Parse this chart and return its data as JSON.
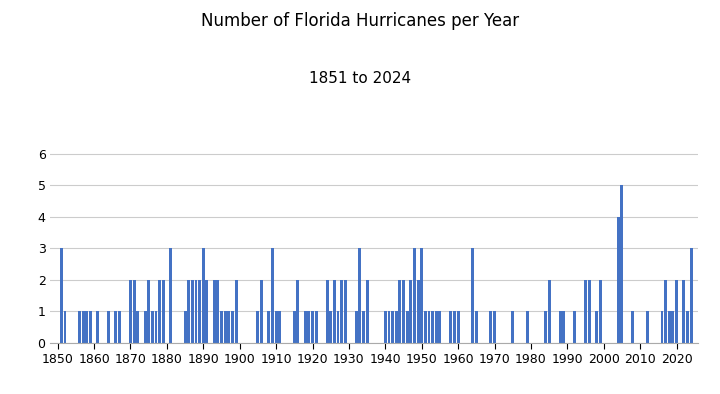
{
  "title": "Number of Florida Hurricanes per Year",
  "subtitle": "1851 to 2024",
  "bar_color": "#4472C4",
  "xlim": [
    1848,
    2026
  ],
  "ylim": [
    0,
    6.5
  ],
  "yticks": [
    0,
    1,
    2,
    3,
    4,
    5,
    6
  ],
  "xticks": [
    1850,
    1860,
    1870,
    1880,
    1890,
    1900,
    1910,
    1920,
    1930,
    1940,
    1950,
    1960,
    1970,
    1980,
    1990,
    2000,
    2010,
    2020
  ],
  "background_color": "#ffffff",
  "grid_color": "#cccccc",
  "title_fontsize": 12,
  "subtitle_fontsize": 11,
  "tick_fontsize": 9,
  "data": {
    "1851": 3,
    "1852": 1,
    "1853": 0,
    "1854": 0,
    "1855": 0,
    "1856": 1,
    "1857": 1,
    "1858": 1,
    "1859": 1,
    "1860": 0,
    "1861": 1,
    "1862": 0,
    "1863": 0,
    "1864": 1,
    "1865": 0,
    "1866": 1,
    "1867": 1,
    "1868": 0,
    "1869": 0,
    "1870": 2,
    "1871": 2,
    "1872": 1,
    "1873": 0,
    "1874": 1,
    "1875": 2,
    "1876": 1,
    "1877": 1,
    "1878": 2,
    "1879": 2,
    "1880": 0,
    "1881": 3,
    "1882": 0,
    "1883": 0,
    "1884": 0,
    "1885": 1,
    "1886": 2,
    "1887": 2,
    "1888": 2,
    "1889": 2,
    "1890": 3,
    "1891": 2,
    "1892": 0,
    "1893": 2,
    "1894": 2,
    "1895": 1,
    "1896": 1,
    "1897": 1,
    "1898": 1,
    "1899": 2,
    "1900": 0,
    "1901": 0,
    "1902": 0,
    "1903": 0,
    "1904": 0,
    "1905": 1,
    "1906": 2,
    "1907": 0,
    "1908": 1,
    "1909": 3,
    "1910": 1,
    "1911": 1,
    "1912": 0,
    "1913": 0,
    "1914": 0,
    "1915": 1,
    "1916": 2,
    "1917": 0,
    "1918": 1,
    "1919": 1,
    "1920": 1,
    "1921": 1,
    "1922": 0,
    "1923": 0,
    "1924": 2,
    "1925": 1,
    "1926": 2,
    "1927": 1,
    "1928": 2,
    "1929": 2,
    "1930": 0,
    "1931": 0,
    "1932": 1,
    "1933": 3,
    "1934": 1,
    "1935": 2,
    "1936": 0,
    "1937": 0,
    "1938": 0,
    "1939": 0,
    "1940": 1,
    "1941": 1,
    "1942": 1,
    "1943": 1,
    "1944": 2,
    "1945": 2,
    "1946": 1,
    "1947": 2,
    "1948": 3,
    "1949": 2,
    "1950": 3,
    "1951": 1,
    "1952": 1,
    "1953": 1,
    "1954": 1,
    "1955": 1,
    "1956": 0,
    "1957": 0,
    "1958": 1,
    "1959": 1,
    "1960": 1,
    "1961": 0,
    "1962": 0,
    "1963": 0,
    "1964": 3,
    "1965": 1,
    "1966": 0,
    "1967": 0,
    "1968": 0,
    "1969": 1,
    "1970": 1,
    "1971": 0,
    "1972": 0,
    "1973": 0,
    "1974": 0,
    "1975": 1,
    "1976": 0,
    "1977": 0,
    "1978": 0,
    "1979": 1,
    "1980": 0,
    "1981": 0,
    "1982": 0,
    "1983": 0,
    "1984": 1,
    "1985": 2,
    "1986": 0,
    "1987": 0,
    "1988": 1,
    "1989": 1,
    "1990": 0,
    "1991": 0,
    "1992": 1,
    "1993": 0,
    "1994": 0,
    "1995": 2,
    "1996": 2,
    "1997": 0,
    "1998": 1,
    "1999": 2,
    "2000": 0,
    "2001": 0,
    "2002": 0,
    "2003": 0,
    "2004": 4,
    "2005": 5,
    "2006": 0,
    "2007": 0,
    "2008": 1,
    "2009": 0,
    "2010": 0,
    "2011": 0,
    "2012": 1,
    "2013": 0,
    "2014": 0,
    "2015": 0,
    "2016": 1,
    "2017": 2,
    "2018": 1,
    "2019": 1,
    "2020": 2,
    "2021": 0,
    "2022": 2,
    "2023": 1,
    "2024": 3
  }
}
